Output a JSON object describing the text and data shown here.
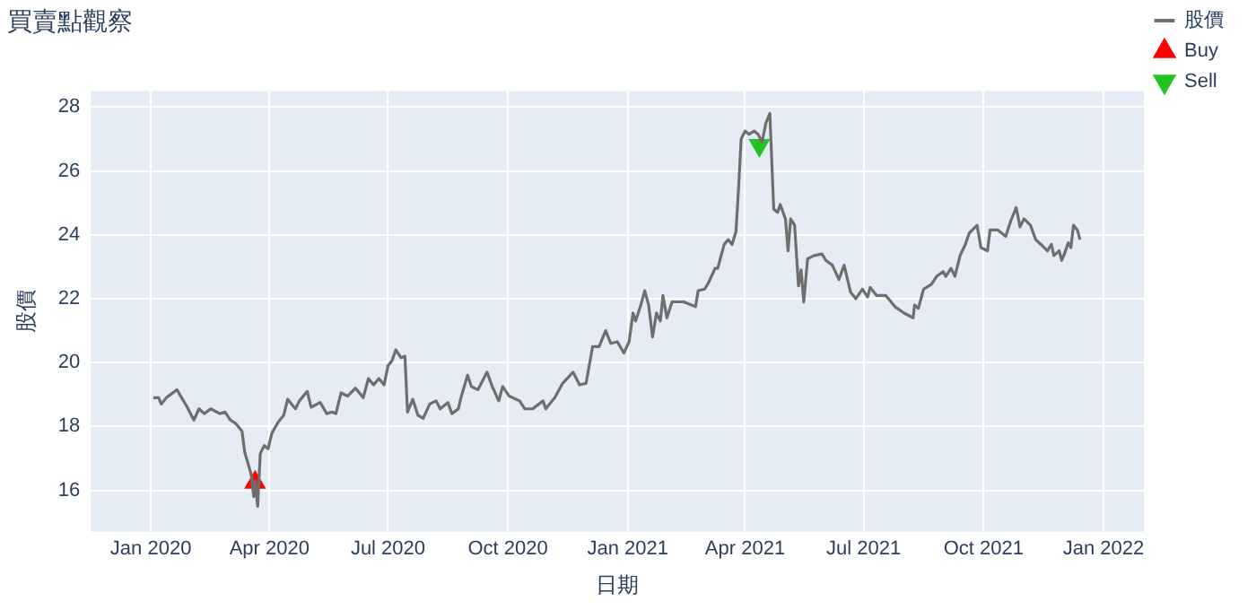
{
  "chart_data": {
    "type": "line",
    "title": "買賣點觀察",
    "xlabel": "日期",
    "ylabel": "股價",
    "legend": "top right",
    "grid": true,
    "xlim": [
      "2019-11-16",
      "2022-02-01"
    ],
    "ylim": [
      14.7,
      28.5
    ],
    "xticks": [
      {
        "value": "2020-01",
        "label": "Jan 2020"
      },
      {
        "value": "2020-04",
        "label": "Apr 2020"
      },
      {
        "value": "2020-07",
        "label": "Jul 2020"
      },
      {
        "value": "2020-10",
        "label": "Oct 2020"
      },
      {
        "value": "2021-01",
        "label": "Jan 2021"
      },
      {
        "value": "2021-04",
        "label": "Apr 2021"
      },
      {
        "value": "2021-07",
        "label": "Jul 2021"
      },
      {
        "value": "2021-10",
        "label": "Oct 2021"
      },
      {
        "value": "2022-01",
        "label": "Jan 2022"
      }
    ],
    "yticks": [
      16,
      18,
      20,
      22,
      24,
      26,
      28
    ],
    "series": [
      {
        "name": "股價",
        "color": "#6e6e6e",
        "marker": "none",
        "line_style": "solid",
        "x": [
          "2020-01-03",
          "2020-01-07",
          "2020-01-09",
          "2020-01-13",
          "2020-01-21",
          "2020-01-29",
          "2020-02-03",
          "2020-02-07",
          "2020-02-11",
          "2020-02-16",
          "2020-02-23",
          "2020-02-27",
          "2020-03-02",
          "2020-03-06",
          "2020-03-11",
          "2020-03-13",
          "2020-03-18",
          "2020-03-20",
          "2020-03-21",
          "2020-03-23",
          "2020-03-25",
          "2020-03-28",
          "2020-03-31",
          "2020-04-03",
          "2020-04-08",
          "2020-04-12",
          "2020-04-15",
          "2020-04-18",
          "2020-04-21",
          "2020-04-24",
          "2020-04-30",
          "2020-05-03",
          "2020-05-10",
          "2020-05-15",
          "2020-05-19",
          "2020-05-22",
          "2020-05-26",
          "2020-05-31",
          "2020-06-06",
          "2020-06-12",
          "2020-06-16",
          "2020-06-20",
          "2020-06-24",
          "2020-06-28",
          "2020-07-01",
          "2020-07-04",
          "2020-07-07",
          "2020-07-11",
          "2020-07-14",
          "2020-07-16",
          "2020-07-20",
          "2020-07-24",
          "2020-07-28",
          "2020-08-02",
          "2020-08-07",
          "2020-08-10",
          "2020-08-16",
          "2020-08-19",
          "2020-08-24",
          "2020-08-26",
          "2020-08-31",
          "2020-09-03",
          "2020-09-08",
          "2020-09-15",
          "2020-09-19",
          "2020-09-24",
          "2020-09-27",
          "2020-10-02",
          "2020-10-10",
          "2020-10-14",
          "2020-10-20",
          "2020-10-28",
          "2020-10-30",
          "2020-11-06",
          "2020-11-12",
          "2020-11-20",
          "2020-11-25",
          "2020-11-30",
          "2020-12-05",
          "2020-12-10",
          "2020-12-15",
          "2020-12-19",
          "2020-12-24",
          "2020-12-29",
          "2021-01-02",
          "2021-01-05",
          "2021-01-07",
          "2021-01-11",
          "2021-01-14",
          "2021-01-17",
          "2021-01-20",
          "2021-01-23",
          "2021-01-26",
          "2021-01-28",
          "2021-01-31",
          "2021-02-04",
          "2021-02-13",
          "2021-02-22",
          "2021-02-24",
          "2021-03-01",
          "2021-03-04",
          "2021-03-09",
          "2021-03-11",
          "2021-03-16",
          "2021-03-19",
          "2021-03-22",
          "2021-03-25",
          "2021-03-27",
          "2021-03-29",
          "2021-04-01",
          "2021-04-04",
          "2021-04-08",
          "2021-04-11",
          "2021-04-14",
          "2021-04-17",
          "2021-04-20",
          "2021-04-23",
          "2021-04-26",
          "2021-04-28",
          "2021-05-02",
          "2021-05-04",
          "2021-05-06",
          "2021-05-09",
          "2021-05-12",
          "2021-05-14",
          "2021-05-16",
          "2021-05-19",
          "2021-05-24",
          "2021-05-30",
          "2021-06-02",
          "2021-06-07",
          "2021-06-12",
          "2021-06-16",
          "2021-06-21",
          "2021-06-25",
          "2021-06-30",
          "2021-07-04",
          "2021-07-06",
          "2021-07-11",
          "2021-07-18",
          "2021-07-25",
          "2021-08-01",
          "2021-08-08",
          "2021-08-09",
          "2021-08-12",
          "2021-08-16",
          "2021-08-22",
          "2021-08-26",
          "2021-08-31",
          "2021-09-02",
          "2021-09-06",
          "2021-09-09",
          "2021-09-13",
          "2021-09-17",
          "2021-09-20",
          "2021-09-26",
          "2021-09-29",
          "2021-10-04",
          "2021-10-06",
          "2021-10-12",
          "2021-10-18",
          "2021-10-22",
          "2021-10-26",
          "2021-10-29",
          "2021-11-01",
          "2021-11-06",
          "2021-11-10",
          "2021-11-14",
          "2021-11-19",
          "2021-11-22",
          "2021-11-24",
          "2021-11-28",
          "2021-11-30",
          "2021-12-02",
          "2021-12-05",
          "2021-12-07",
          "2021-12-09",
          "2021-12-12",
          "2021-12-14"
        ],
        "values": [
          18.9,
          18.9,
          18.7,
          18.9,
          19.15,
          18.6,
          18.2,
          18.55,
          18.4,
          18.55,
          18.4,
          18.45,
          18.2,
          18.1,
          17.85,
          17.2,
          16.5,
          15.8,
          16.3,
          15.5,
          17.15,
          17.4,
          17.3,
          17.8,
          18.15,
          18.35,
          18.85,
          18.7,
          18.55,
          18.8,
          19.1,
          18.6,
          18.75,
          18.4,
          18.45,
          18.4,
          19.05,
          18.95,
          19.2,
          18.9,
          19.5,
          19.3,
          19.5,
          19.3,
          19.9,
          20.05,
          20.4,
          20.15,
          20.2,
          18.45,
          18.85,
          18.35,
          18.25,
          18.7,
          18.8,
          18.55,
          18.75,
          18.4,
          18.55,
          18.9,
          19.6,
          19.25,
          19.15,
          19.7,
          19.25,
          18.8,
          19.25,
          18.95,
          18.8,
          18.55,
          18.55,
          18.8,
          18.55,
          18.9,
          19.35,
          19.7,
          19.3,
          19.35,
          20.5,
          20.5,
          21.0,
          20.6,
          20.65,
          20.3,
          20.65,
          21.55,
          21.3,
          21.8,
          22.25,
          21.8,
          20.8,
          21.55,
          21.3,
          22.1,
          21.4,
          21.9,
          21.9,
          21.75,
          22.25,
          22.3,
          22.5,
          22.95,
          22.95,
          23.7,
          23.85,
          23.7,
          24.1,
          25.45,
          27.0,
          27.25,
          27.15,
          27.25,
          27.15,
          26.9,
          27.5,
          27.8,
          24.8,
          24.7,
          24.95,
          24.5,
          23.5,
          24.5,
          24.3,
          22.4,
          22.9,
          21.9,
          23.25,
          23.35,
          23.4,
          23.2,
          23.05,
          22.6,
          23.05,
          22.2,
          22.0,
          22.3,
          22.05,
          22.35,
          22.1,
          22.1,
          21.75,
          21.55,
          21.4,
          21.8,
          21.7,
          22.3,
          22.45,
          22.7,
          22.85,
          22.7,
          22.95,
          22.7,
          23.35,
          23.7,
          24.05,
          24.3,
          23.6,
          23.5,
          24.15,
          24.15,
          23.95,
          24.45,
          24.85,
          24.25,
          24.5,
          24.3,
          23.85,
          23.7,
          23.5,
          23.7,
          23.35,
          23.5,
          23.2,
          23.4,
          23.75,
          23.6,
          24.3,
          24.15,
          23.85
        ]
      },
      {
        "name": "Buy",
        "type": "scatter",
        "color": "#ff0000",
        "marker": "triangle",
        "x": [
          "2020-03-21"
        ],
        "values": [
          16.25
        ]
      },
      {
        "name": "Sell",
        "type": "scatter",
        "color": "#22c322",
        "marker": "triangle-down",
        "x": [
          "2021-04-12"
        ],
        "values": [
          26.8
        ]
      }
    ]
  }
}
